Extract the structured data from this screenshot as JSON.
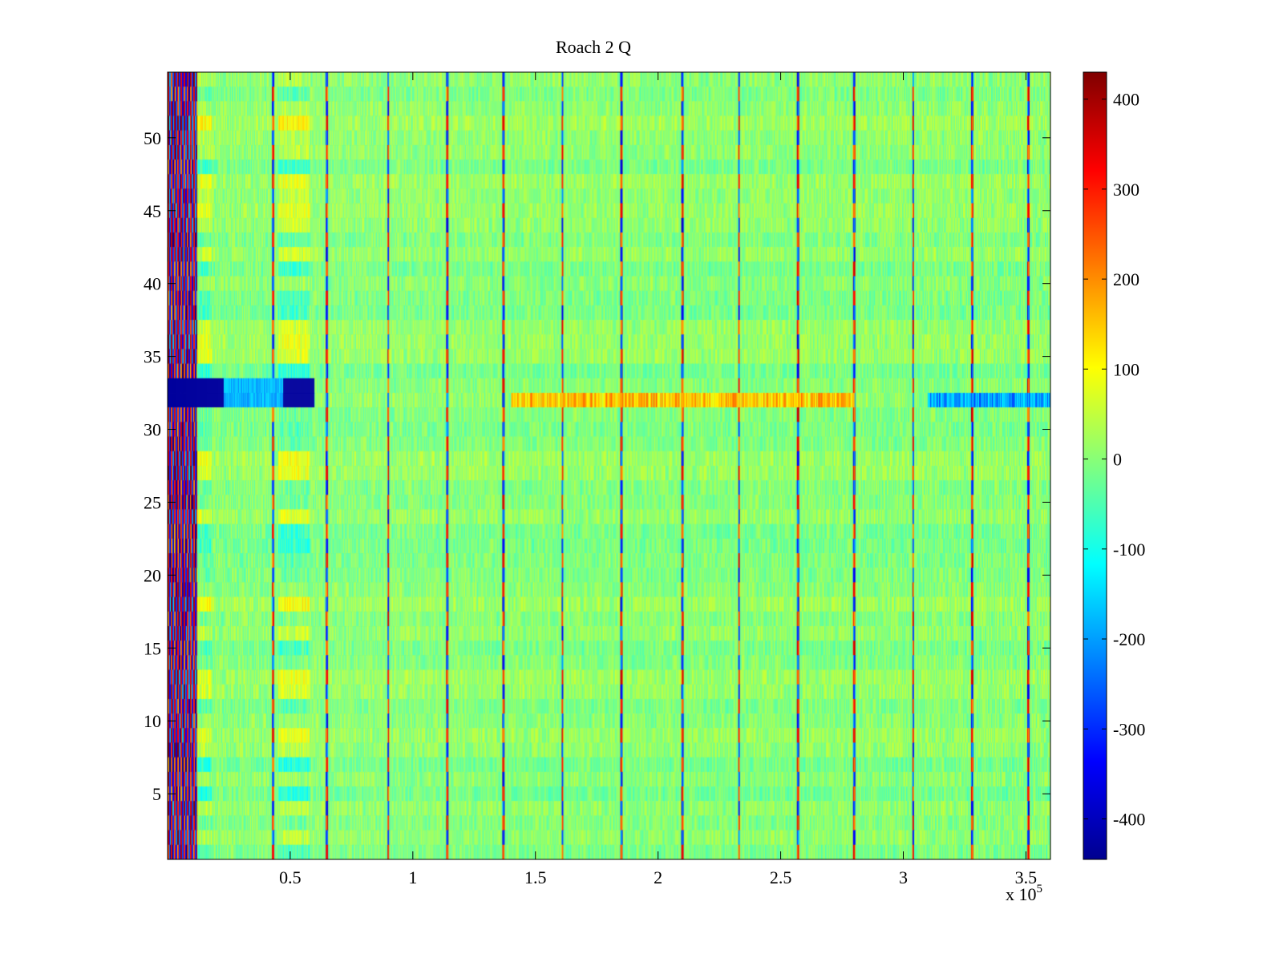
{
  "chart_data": {
    "type": "heatmap",
    "title": "Roach 2 Q",
    "xlabel": "",
    "ylabel": "",
    "x_exponent_label": "x 10",
    "x_exponent_power": "5",
    "xlim": [
      0,
      3.6
    ],
    "ylim": [
      0.5,
      54.5
    ],
    "x_ticks": [
      0.5,
      1,
      1.5,
      2,
      2.5,
      3,
      3.5
    ],
    "x_tick_labels": [
      "0.5",
      "1",
      "1.5",
      "2",
      "2.5",
      "3",
      "3.5"
    ],
    "y_ticks": [
      5,
      10,
      15,
      20,
      25,
      30,
      35,
      40,
      45,
      50
    ],
    "y_tick_labels": [
      "5",
      "10",
      "15",
      "20",
      "25",
      "30",
      "35",
      "40",
      "45",
      "50"
    ],
    "rows": 54,
    "colorbar": {
      "clim": [
        -445,
        430
      ],
      "colormap": "jet",
      "ticks": [
        400,
        300,
        200,
        100,
        0,
        -100,
        -200,
        -300,
        -400
      ],
      "tick_labels": [
        "400",
        "300",
        "200",
        "100",
        "0",
        "-100",
        "-200",
        "-300",
        "-400"
      ]
    },
    "background_value": 0,
    "spike_columns_x": [
      0.43,
      0.65,
      0.9,
      1.14,
      1.37,
      1.61,
      1.85,
      2.1,
      2.33,
      2.57,
      2.8,
      3.04,
      3.28,
      3.51
    ],
    "row_32_strong_negative_x": [
      0,
      0.6
    ],
    "row_32_positive_band_x": [
      1.4,
      2.8
    ],
    "row_32_negative_tail_x": [
      3.1,
      3.6
    ],
    "left_edge_oscillation_x": [
      0,
      0.12
    ],
    "patch_x": [
      0.45,
      0.58
    ]
  }
}
